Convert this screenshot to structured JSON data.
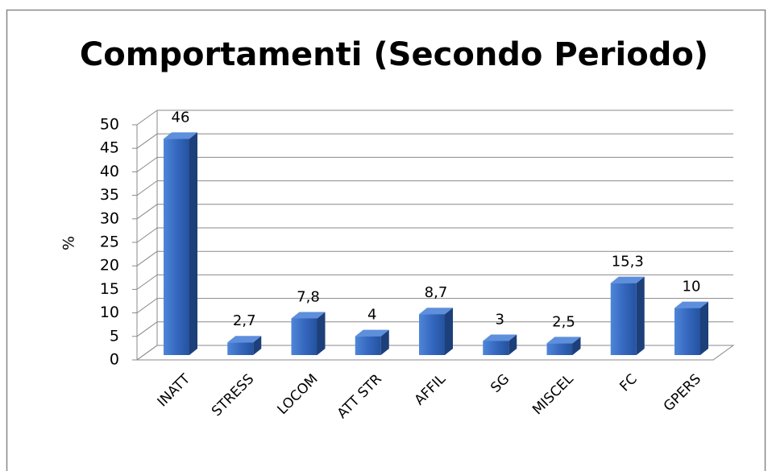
{
  "chart_data": {
    "type": "bar3d",
    "title": "Comportamenti (Secondo Periodo)",
    "y_label": "%",
    "categories": [
      "INATT",
      "STRESS",
      "LOCOM",
      "ATT STR",
      "AFFIL",
      "SG",
      "MISCEL",
      "FC",
      "GPERS"
    ],
    "values": [
      46,
      2.7,
      7.8,
      4,
      8.7,
      3,
      2.5,
      15.3,
      10
    ],
    "value_labels": [
      "46",
      "2,7",
      "7,8",
      "4",
      "8,7",
      "3",
      "2,5",
      "15,3",
      "10"
    ],
    "color": "#3568bf",
    "ylim": [
      0,
      50
    ],
    "yticks": [
      0,
      5,
      10,
      15,
      20,
      25,
      30,
      35,
      40,
      45,
      50
    ],
    "grid": true
  }
}
